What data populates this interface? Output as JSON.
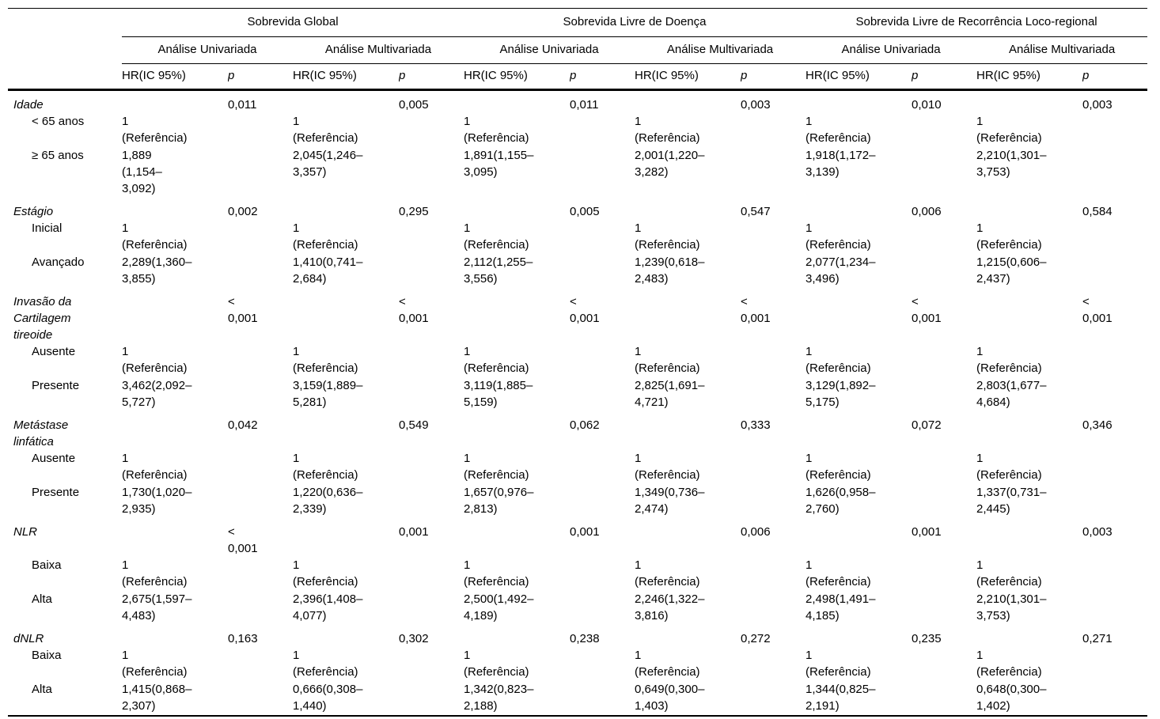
{
  "table": {
    "groups": [
      {
        "label": "Sobrevida Global"
      },
      {
        "label": "Sobrevida Livre de Doença"
      },
      {
        "label": "Sobrevida Livre de Recorrência Loco-regional"
      }
    ],
    "analysis_labels": [
      "Análise Univariada",
      "Análise Multivariada"
    ],
    "col_headers": {
      "hr": "HR(IC 95%)",
      "p": "p"
    },
    "rows": [
      {
        "variable": "Idade",
        "p": [
          "0,011",
          "0,005",
          "0,011",
          "0,003",
          "0,010",
          "0,003"
        ],
        "levels": [
          {
            "label": "< 65 anos",
            "hr": [
              "1\n(Referência)",
              "1\n(Referência)",
              "1\n(Referência)",
              "1\n(Referência)",
              "1\n(Referência)",
              "1\n(Referência)"
            ]
          },
          {
            "label": "≥ 65 anos",
            "hr": [
              "1,889\n(1,154–\n3,092)",
              "2,045(1,246–\n3,357)",
              "1,891(1,155–\n3,095)",
              "2,001(1,220–\n3,282)",
              "1,918(1,172–\n3,139)",
              "2,210(1,301–\n3,753)"
            ]
          }
        ]
      },
      {
        "variable": "Estágio",
        "p": [
          "0,002",
          "0,295",
          "0,005",
          "0,547",
          "0,006",
          "0,584"
        ],
        "levels": [
          {
            "label": "Inicial",
            "hr": [
              "1\n(Referência)",
              "1\n(Referência)",
              "1\n(Referência)",
              "1\n(Referência)",
              "1\n(Referência)",
              "1\n(Referência)"
            ]
          },
          {
            "label": "Avançado",
            "hr": [
              "2,289(1,360–\n3,855)",
              "1,410(0,741–\n2,684)",
              "2,112(1,255–\n3,556)",
              "1,239(0,618–\n2,483)",
              "2,077(1,234–\n3,496)",
              "1,215(0,606–\n2,437)"
            ]
          }
        ]
      },
      {
        "variable": "Invasão da\nCartilagem\ntireoide",
        "p": [
          "<\n0,001",
          "<\n0,001",
          "<\n0,001",
          "<\n0,001",
          "<\n0,001",
          "<\n0,001"
        ],
        "levels": [
          {
            "label": "Ausente",
            "hr": [
              "1\n(Referência)",
              "1\n(Referência)",
              "1\n(Referência)",
              "1\n(Referência)",
              "1\n(Referência)",
              "1\n(Referência)"
            ]
          },
          {
            "label": "Presente",
            "hr": [
              "3,462(2,092–\n5,727)",
              "3,159(1,889–\n5,281)",
              "3,119(1,885–\n5,159)",
              "2,825(1,691–\n4,721)",
              "3,129(1,892–\n5,175)",
              "2,803(1,677–\n4,684)"
            ]
          }
        ]
      },
      {
        "variable": "Metástase\nlinfática",
        "p": [
          "0,042",
          "0,549",
          "0,062",
          "0,333",
          "0,072",
          "0,346"
        ],
        "levels": [
          {
            "label": "Ausente",
            "hr": [
              "1\n(Referência)",
              "1\n(Referência)",
              "1\n(Referência)",
              "1\n(Referência)",
              "1\n(Referência)",
              "1\n(Referência)"
            ]
          },
          {
            "label": "Presente",
            "hr": [
              "1,730(1,020–\n2,935)",
              "1,220(0,636–\n2,339)",
              "1,657(0,976–\n2,813)",
              "1,349(0,736–\n2,474)",
              "1,626(0,958–\n2,760)",
              "1,337(0,731–\n2,445)"
            ]
          }
        ]
      },
      {
        "variable": "NLR",
        "p": [
          "<\n0,001",
          "0,001",
          "0,001",
          "0,006",
          "0,001",
          "0,003"
        ],
        "levels": [
          {
            "label": "Baixa",
            "hr": [
              "1\n(Referência)",
              "1\n(Referência)",
              "1\n(Referência)",
              "1\n(Referência)",
              "1\n(Referência)",
              "1\n(Referência)"
            ]
          },
          {
            "label": "Alta",
            "hr": [
              "2,675(1,597–\n4,483)",
              "2,396(1,408–\n4,077)",
              "2,500(1,492–\n4,189)",
              "2,246(1,322–\n3,816)",
              "2,498(1,491–\n4,185)",
              "2,210(1,301–\n3,753)"
            ]
          }
        ]
      },
      {
        "variable": "dNLR",
        "p": [
          "0,163",
          "0,302",
          "0,238",
          "0,272",
          "0,235",
          "0,271"
        ],
        "levels": [
          {
            "label": "Baixa",
            "hr": [
              "1\n(Referência)",
              "1\n(Referência)",
              "1\n(Referência)",
              "1\n(Referência)",
              "1\n(Referência)",
              "1\n(Referência)"
            ]
          },
          {
            "label": "Alta",
            "hr": [
              "1,415(0,868–\n2,307)",
              "0,666(0,308–\n1,440)",
              "1,342(0,823–\n2,188)",
              "0,649(0,300–\n1,403)",
              "1,344(0,825–\n2,191)",
              "0,648(0,300–\n1,402)"
            ]
          }
        ]
      }
    ]
  }
}
